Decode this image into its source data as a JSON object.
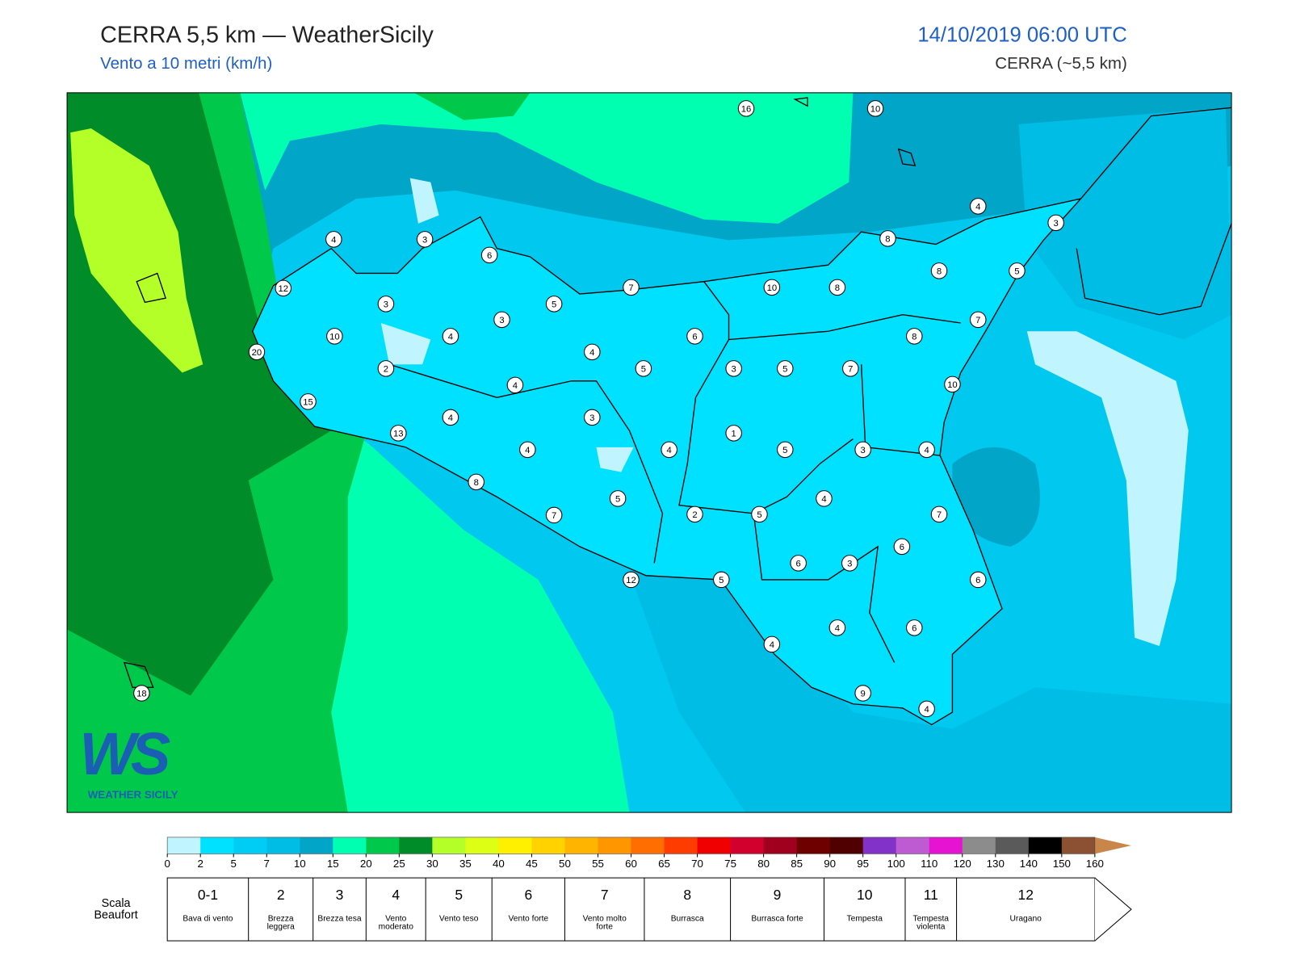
{
  "header": {
    "title": "CERRA 5,5 km — WeatherSicily",
    "subtitle": "Vento a 10 metri (km/h)",
    "datetime": "14/10/2019 06:00 UTC",
    "model": "CERRA (~5,5 km)"
  },
  "map": {
    "station_labels": [
      16,
      10,
      4,
      3,
      4,
      3,
      6,
      8,
      12,
      7,
      10,
      8,
      8,
      5,
      3,
      5,
      3,
      7,
      10,
      4,
      6,
      8,
      20,
      4,
      2,
      5,
      3,
      5,
      7,
      4,
      10,
      15,
      4,
      3,
      13,
      1,
      4,
      4,
      5,
      3,
      4,
      8,
      5,
      4,
      7,
      2,
      5,
      7,
      6,
      6,
      3,
      12,
      5,
      6,
      4,
      6,
      4,
      9,
      4,
      18
    ]
  },
  "logo": {
    "mark": "WS",
    "text": "WEATHER SICILY"
  },
  "colorbar": {
    "ticks": [
      0,
      2,
      5,
      7,
      10,
      15,
      20,
      25,
      30,
      35,
      40,
      45,
      50,
      55,
      60,
      65,
      70,
      75,
      80,
      85,
      90,
      95,
      100,
      110,
      120,
      130,
      140,
      150,
      160
    ],
    "colors": [
      "#c0f4ff",
      "#00e1ff",
      "#00cdf5",
      "#00bde6",
      "#00a5c8",
      "#00ffb0",
      "#00c84b",
      "#008c28",
      "#b4ff28",
      "#dcff14",
      "#fff000",
      "#ffd200",
      "#ffb400",
      "#ff9600",
      "#ff6e00",
      "#ff3c00",
      "#f00000",
      "#d2002d",
      "#a0001e",
      "#6e0000",
      "#500000",
      "#8232c8",
      "#be5ad2",
      "#e614d2",
      "#8c8c8c",
      "#5a5a5a",
      "#000000",
      "#8c5032",
      "#c8864a"
    ]
  },
  "beaufort": {
    "title": "Scala Beaufort",
    "levels": [
      {
        "number": "0-1",
        "description": "Bava di vento"
      },
      {
        "number": "2",
        "description": "Brezza leggera"
      },
      {
        "number": "3",
        "description": "Brezza tesa"
      },
      {
        "number": "4",
        "description": "Vento moderato"
      },
      {
        "number": "5",
        "description": "Vento teso"
      },
      {
        "number": "6",
        "description": "Vento forte"
      },
      {
        "number": "7",
        "description": "Vento molto forte"
      },
      {
        "number": "8",
        "description": "Burrasca"
      },
      {
        "number": "9",
        "description": "Burrasca forte"
      },
      {
        "number": "10",
        "description": "Tempesta"
      },
      {
        "number": "11",
        "description": "Tempesta violenta"
      },
      {
        "number": "12",
        "description": "Uragano"
      }
    ]
  }
}
